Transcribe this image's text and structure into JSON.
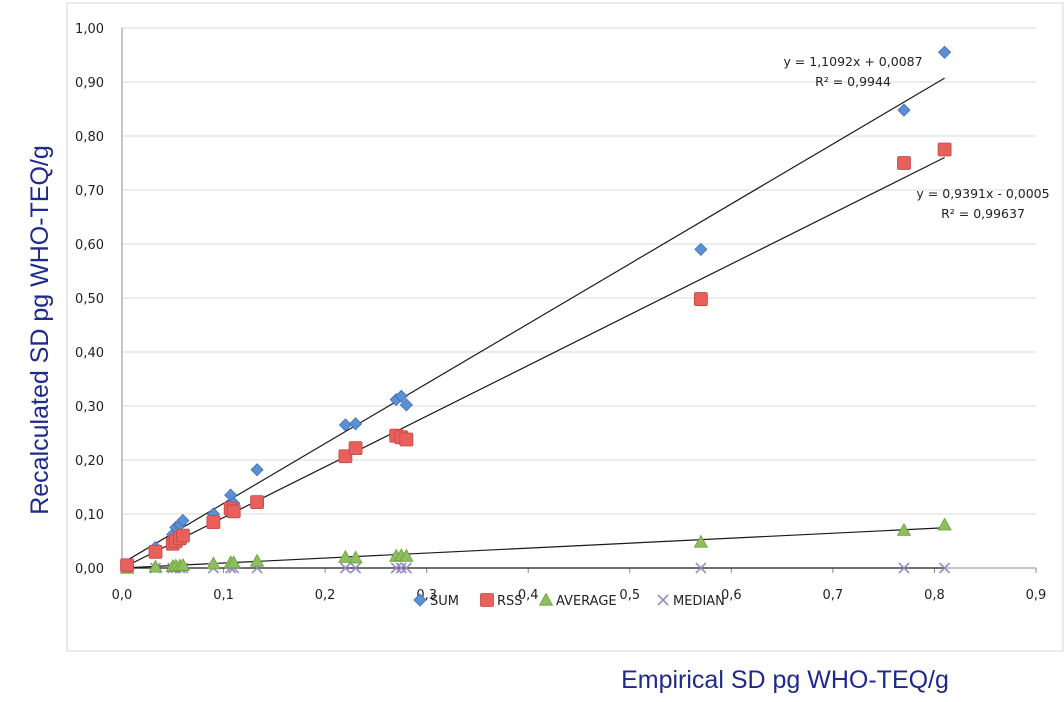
{
  "chart_data": {
    "type": "scatter",
    "xlabel": "Empirical SD pg WHO-TEQ/g",
    "ylabel": "Recalculated SD pg WHO-TEQ/g",
    "xlim": [
      0,
      0.9
    ],
    "ylim": [
      0,
      1.0
    ],
    "x_ticks": [
      "0,0",
      "0,1",
      "0,2",
      "0,3",
      "0,4",
      "0,5",
      "0,6",
      "0,7",
      "0,8",
      "0,9"
    ],
    "y_ticks": [
      "0,00",
      "0,10",
      "0,20",
      "0,30",
      "0,40",
      "0,50",
      "0,60",
      "0,70",
      "0,80",
      "0,90",
      "1,00"
    ],
    "grid": "horizontal",
    "legend_position": "bottom",
    "series": [
      {
        "name": "SUM",
        "color": "#5b8fd6",
        "marker": "diamond",
        "points": [
          [
            0.005,
            0.005
          ],
          [
            0.033,
            0.038
          ],
          [
            0.05,
            0.062
          ],
          [
            0.053,
            0.075
          ],
          [
            0.057,
            0.08
          ],
          [
            0.06,
            0.088
          ],
          [
            0.09,
            0.1
          ],
          [
            0.107,
            0.135
          ],
          [
            0.11,
            0.12
          ],
          [
            0.133,
            0.182
          ],
          [
            0.22,
            0.265
          ],
          [
            0.23,
            0.267
          ],
          [
            0.27,
            0.312
          ],
          [
            0.275,
            0.318
          ],
          [
            0.28,
            0.302
          ],
          [
            0.57,
            0.59
          ],
          [
            0.77,
            0.848
          ],
          [
            0.81,
            0.955
          ]
        ]
      },
      {
        "name": "RSS",
        "color": "#e8605c",
        "marker": "square",
        "points": [
          [
            0.005,
            0.005
          ],
          [
            0.033,
            0.03
          ],
          [
            0.05,
            0.045
          ],
          [
            0.053,
            0.05
          ],
          [
            0.057,
            0.055
          ],
          [
            0.06,
            0.06
          ],
          [
            0.09,
            0.085
          ],
          [
            0.107,
            0.11
          ],
          [
            0.11,
            0.105
          ],
          [
            0.133,
            0.122
          ],
          [
            0.22,
            0.207
          ],
          [
            0.23,
            0.222
          ],
          [
            0.27,
            0.245
          ],
          [
            0.275,
            0.242
          ],
          [
            0.28,
            0.238
          ],
          [
            0.57,
            0.498
          ],
          [
            0.77,
            0.75
          ],
          [
            0.81,
            0.775
          ]
        ]
      },
      {
        "name": "AVERAGE",
        "color": "#8dc05a",
        "marker": "triangle",
        "points": [
          [
            0.005,
            0.0
          ],
          [
            0.033,
            0.002
          ],
          [
            0.05,
            0.003
          ],
          [
            0.053,
            0.004
          ],
          [
            0.057,
            0.004
          ],
          [
            0.06,
            0.005
          ],
          [
            0.09,
            0.008
          ],
          [
            0.107,
            0.01
          ],
          [
            0.11,
            0.01
          ],
          [
            0.133,
            0.013
          ],
          [
            0.22,
            0.02
          ],
          [
            0.23,
            0.019
          ],
          [
            0.27,
            0.022
          ],
          [
            0.275,
            0.023
          ],
          [
            0.28,
            0.022
          ],
          [
            0.57,
            0.048
          ],
          [
            0.77,
            0.07
          ],
          [
            0.81,
            0.08
          ]
        ]
      },
      {
        "name": "MEDIAN",
        "color": "#9a8cc6",
        "marker": "x",
        "points": [
          [
            0.005,
            0.0
          ],
          [
            0.033,
            0.0
          ],
          [
            0.05,
            0.0
          ],
          [
            0.053,
            0.0
          ],
          [
            0.057,
            0.0
          ],
          [
            0.06,
            0.0
          ],
          [
            0.09,
            0.0
          ],
          [
            0.107,
            0.0
          ],
          [
            0.11,
            0.0
          ],
          [
            0.133,
            0.0
          ],
          [
            0.22,
            0.0
          ],
          [
            0.23,
            0.0
          ],
          [
            0.27,
            0.0
          ],
          [
            0.275,
            0.0
          ],
          [
            0.28,
            0.0
          ],
          [
            0.57,
            0.0
          ],
          [
            0.77,
            0.0
          ],
          [
            0.81,
            0.0
          ]
        ]
      }
    ],
    "trendlines": [
      {
        "series": "SUM",
        "slope": 1.1092,
        "intercept": 0.0087,
        "x_range": [
          0.005,
          0.81
        ],
        "equation": "y = 1,1092x + 0,0087",
        "r2": "R² = 0,9944"
      },
      {
        "series": "RSS",
        "slope": 0.9391,
        "intercept": -0.0005,
        "x_range": [
          0.005,
          0.81
        ],
        "equation": "y = 0,9391x - 0,0005",
        "r2": "R² = 0,99637"
      },
      {
        "series": "AVERAGE",
        "slope": 0.092,
        "intercept": 0.0,
        "x_range": [
          0.005,
          0.81
        ]
      },
      {
        "series": "MEDIAN",
        "slope": 0.0,
        "intercept": 0.0,
        "x_range": [
          0.005,
          0.81
        ]
      }
    ]
  }
}
